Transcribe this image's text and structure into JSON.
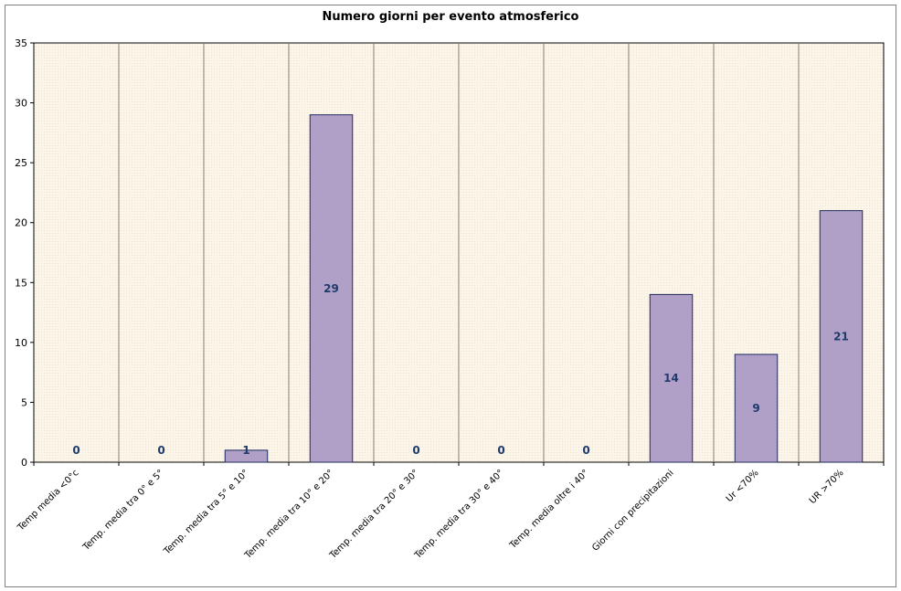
{
  "chart_data": {
    "type": "bar",
    "title": "Numero giorni per evento atmosferico",
    "xlabel": "",
    "ylabel": "",
    "categories": [
      "Temp media <0°c",
      "Temp. media tra 0° e 5°",
      "Temp. media tra 5° e 10°",
      "Temp. media tra 10° e 20°",
      "Temp. media tra 20° e 30°",
      "Temp. media tra 30° e 40°",
      "Temp. media oltre i 40°",
      "Giorni con precipitazioni",
      "Ur <70%",
      "UR >70%"
    ],
    "values": [
      0,
      0,
      1,
      29,
      0,
      0,
      0,
      14,
      9,
      21
    ],
    "ylim": [
      0,
      35
    ],
    "yticks": [
      0,
      5,
      10,
      15,
      20,
      25,
      30,
      35
    ],
    "grid": "vertical separators",
    "legend": "none",
    "colors": {
      "bar_fill": "#b0a0c8",
      "bar_stroke": "#1f2a5c",
      "plot_bg": "#fbf5ea",
      "separator": "#8a7a70",
      "label": "#1f3a6b"
    }
  }
}
